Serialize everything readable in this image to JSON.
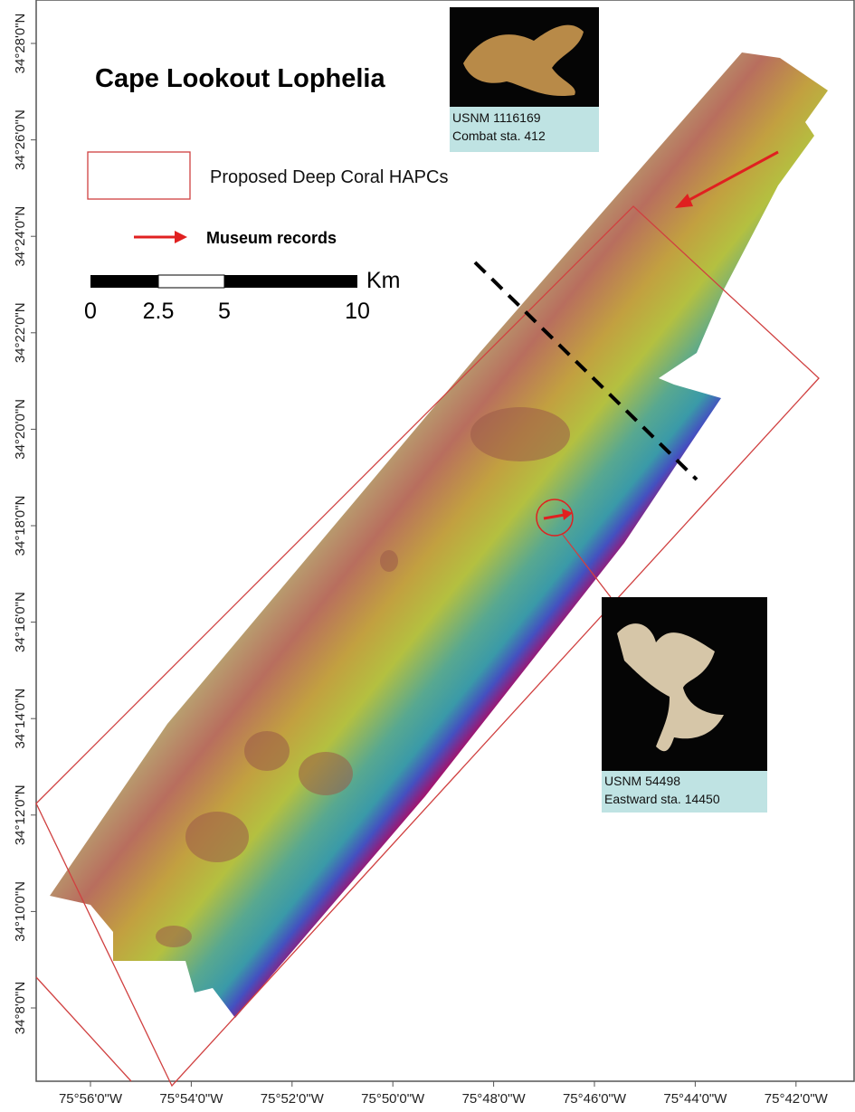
{
  "title": "Cape Lookout Lophelia",
  "legend": {
    "hapc": "Proposed Deep Coral HAPCs",
    "museum": "Museum records"
  },
  "scale_bar": {
    "unit": "Km",
    "labels": [
      "0",
      "2.5",
      "5",
      "10"
    ]
  },
  "specimens": [
    {
      "catalog": "USNM 1116169",
      "station": "Combat sta. 412"
    },
    {
      "catalog": "USNM 54498",
      "station": "Eastward sta. 14450"
    }
  ],
  "axes": {
    "latitude": [
      "34°28'0\"N",
      "34°26'0\"N",
      "34°24'0\"N",
      "34°22'0\"N",
      "34°20'0\"N",
      "34°18'0\"N",
      "34°16'0\"N",
      "34°14'0\"N",
      "34°12'0\"N",
      "34°10'0\"N",
      "34°8'0\"N"
    ],
    "longitude": [
      "75°56'0\"W",
      "75°54'0\"W",
      "75°52'0\"W",
      "75°50'0\"W",
      "75°48'0\"W",
      "75°46'0\"W",
      "75°44'0\"W",
      "75°42'0\"W"
    ]
  }
}
